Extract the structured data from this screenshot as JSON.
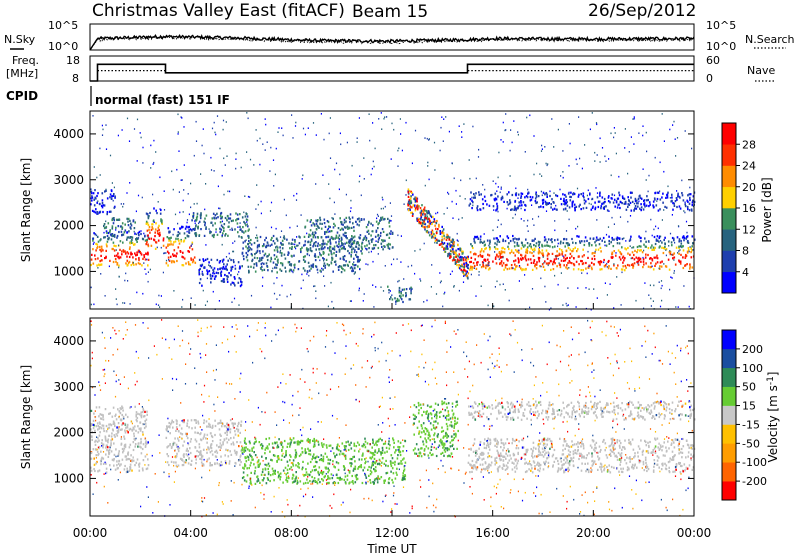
{
  "header": {
    "title": "Christmas Valley East (fitACF)",
    "beam": "Beam 15",
    "date": "26/Sep/2012"
  },
  "noise_panel": {
    "left_label": "N.Sky",
    "right_label": "N.Search",
    "left_ticks": [
      "10^5",
      "10^0"
    ],
    "right_ticks": [
      "10^5",
      "10^0"
    ]
  },
  "freq_panel": {
    "left_label_1": "Freq.",
    "left_label_2": "[MHz]",
    "right_label": "Nave",
    "left_ticks": [
      "18",
      "8"
    ],
    "right_ticks": [
      "60",
      "0"
    ]
  },
  "cpid": {
    "label": "CPID",
    "program": "normal (fast) 151 IF"
  },
  "colors": {
    "power": [
      "#0000ff",
      "#1e3fae",
      "#27637e",
      "#3a8f5c",
      "#ffd000",
      "#ff8c00",
      "#ff3000",
      "#ff0000"
    ],
    "velocity": [
      "#ff0000",
      "#ff6400",
      "#ff9d00",
      "#ffc000",
      "#c8c8c8",
      "#66cc33",
      "#2e8b57",
      "#1a4ea0",
      "#0000ff"
    ],
    "ground_scatter": "#c0c0c0"
  },
  "chart_data": [
    {
      "type": "line",
      "title": "N.Sky / N.Search noise",
      "x_range_hours": [
        0,
        24
      ],
      "log_scale": true,
      "ylim_exponent": [
        0,
        5
      ],
      "series": [
        {
          "name": "N.Sky",
          "x": [
            0,
            0.3,
            3,
            6,
            9,
            12,
            15,
            16,
            20,
            24
          ],
          "values_log10": [
            0,
            2.2,
            2.6,
            2.3,
            1.8,
            1.7,
            2.0,
            2.2,
            2.1,
            2.2
          ]
        },
        {
          "name": "N.Search",
          "x": [
            0,
            0.3,
            3,
            6,
            9,
            12,
            15,
            16,
            20,
            24
          ],
          "values_log10": [
            0,
            2.0,
            2.4,
            2.1,
            1.6,
            1.5,
            1.8,
            2.0,
            1.9,
            2.0
          ]
        }
      ]
    },
    {
      "type": "line",
      "title": "Freq. [MHz] / Nave",
      "x_range_hours": [
        0,
        24
      ],
      "ylim": [
        8,
        18
      ],
      "ylim_right": [
        0,
        60
      ],
      "series": [
        {
          "name": "Freq.",
          "x": [
            0,
            0.3,
            0.3,
            3.0,
            3.0,
            15.0,
            15.0,
            24.0
          ],
          "values": [
            8,
            8,
            14.7,
            14.7,
            11.3,
            11.3,
            14.7,
            14.7
          ]
        },
        {
          "name": "Nave",
          "x": [
            0.3,
            3.0,
            3.0,
            15.0,
            15.0,
            24.0
          ],
          "values": [
            25,
            25,
            20,
            20,
            25,
            25
          ]
        }
      ]
    },
    {
      "type": "heatmap",
      "title": "Power",
      "xlabel": "",
      "ylabel": "Slant Range [km]",
      "xlim_hours": [
        0,
        24
      ],
      "ylim": [
        180,
        4500
      ],
      "yticks": [
        "1000",
        "2000",
        "3000",
        "4000"
      ],
      "colorbar_label": "Power [dB]",
      "colorbar_ticks": [
        "4",
        "8",
        "12",
        "16",
        "20",
        "24",
        "28"
      ],
      "bands": [
        {
          "t0": 0.0,
          "t1": 2.3,
          "r0": 1150,
          "r1": 1900,
          "level": "high"
        },
        {
          "t0": 0.0,
          "t1": 1.0,
          "r0": 2250,
          "r1": 2800,
          "level": "low"
        },
        {
          "t0": 0.5,
          "t1": 1.8,
          "r0": 1750,
          "r1": 2200,
          "level": "mid"
        },
        {
          "t0": 2.2,
          "t1": 2.9,
          "r0": 1500,
          "r1": 2400,
          "level": "high"
        },
        {
          "t0": 3.0,
          "t1": 4.2,
          "r0": 1150,
          "r1": 2000,
          "level": "high"
        },
        {
          "t0": 4.0,
          "t1": 6.3,
          "r0": 1750,
          "r1": 2300,
          "level": "mid"
        },
        {
          "t0": 4.3,
          "t1": 6.0,
          "r0": 700,
          "r1": 1300,
          "level": "low"
        },
        {
          "t0": 6.0,
          "t1": 10.8,
          "r0": 1000,
          "r1": 1800,
          "level": "mid"
        },
        {
          "t0": 8.5,
          "t1": 12.0,
          "r0": 1500,
          "r1": 2200,
          "level": "mid"
        },
        {
          "t0": 11.8,
          "t1": 12.8,
          "r0": 350,
          "r1": 700,
          "level": "mid"
        },
        {
          "t0": 12.6,
          "t1": 15.0,
          "r0": 1100,
          "r1": 2600,
          "level": "diagonal"
        },
        {
          "t0": 15.0,
          "t1": 24.0,
          "r0": 1050,
          "r1": 1800,
          "level": "high"
        },
        {
          "t0": 15.0,
          "t1": 24.0,
          "r0": 2350,
          "r1": 2750,
          "level": "low"
        }
      ]
    },
    {
      "type": "heatmap",
      "title": "Velocity",
      "xlabel": "Time UT",
      "ylabel": "Slant Range [km]",
      "xlim_hours": [
        0,
        24
      ],
      "ylim": [
        180,
        4500
      ],
      "yticks": [
        "1000",
        "2000",
        "3000",
        "4000"
      ],
      "xticks": [
        "00:00",
        "04:00",
        "08:00",
        "12:00",
        "16:00",
        "20:00",
        "00:00"
      ],
      "colorbar_label": "Velocity [m s-1]",
      "colorbar_ticks": [
        "-200",
        "-100",
        "-50",
        "-15",
        "15",
        "50",
        "100",
        "200"
      ],
      "bands": [
        {
          "t0": 0.0,
          "t1": 2.3,
          "r0": 1150,
          "r1": 2600,
          "level": "ground"
        },
        {
          "t0": 3.0,
          "t1": 6.0,
          "r0": 1300,
          "r1": 2300,
          "level": "ground"
        },
        {
          "t0": 6.0,
          "t1": 12.5,
          "r0": 900,
          "r1": 1900,
          "level": "positive"
        },
        {
          "t0": 12.8,
          "t1": 14.6,
          "r0": 1500,
          "r1": 2700,
          "level": "positive"
        },
        {
          "t0": 15.0,
          "t1": 24.0,
          "r0": 1150,
          "r1": 1900,
          "level": "ground"
        },
        {
          "t0": 15.0,
          "t1": 24.0,
          "r0": 2300,
          "r1": 2700,
          "level": "ground"
        }
      ]
    }
  ]
}
